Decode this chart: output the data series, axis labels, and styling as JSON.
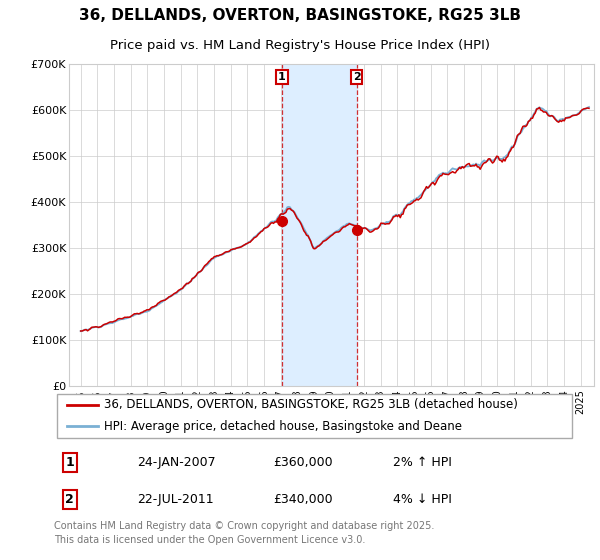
{
  "title": "36, DELLANDS, OVERTON, BASINGSTOKE, RG25 3LB",
  "subtitle": "Price paid vs. HM Land Registry's House Price Index (HPI)",
  "ylim": [
    0,
    700000
  ],
  "yticks": [
    0,
    100000,
    200000,
    300000,
    400000,
    500000,
    600000,
    700000
  ],
  "ytick_labels": [
    "£0",
    "£100K",
    "£200K",
    "£300K",
    "£400K",
    "£500K",
    "£600K",
    "£700K"
  ],
  "sale1_year": 2007.07,
  "sale1_price": 360000,
  "sale1_date": "24-JAN-2007",
  "sale1_pct": "2%",
  "sale1_direction": "↑",
  "sale2_year": 2011.55,
  "sale2_price": 340000,
  "sale2_date": "22-JUL-2011",
  "sale2_pct": "4%",
  "sale2_direction": "↓",
  "legend_line1": "36, DELLANDS, OVERTON, BASINGSTOKE, RG25 3LB (detached house)",
  "legend_line2": "HPI: Average price, detached house, Basingstoke and Deane",
  "footer": "Contains HM Land Registry data © Crown copyright and database right 2025.\nThis data is licensed under the Open Government Licence v3.0.",
  "line_color_red": "#cc0000",
  "line_color_blue": "#7ab0d4",
  "shade_color": "#ddeeff",
  "grid_color": "#cccccc",
  "title_fontsize": 11,
  "subtitle_fontsize": 9.5,
  "tick_fontsize": 8,
  "legend_fontsize": 8.5,
  "footer_fontsize": 7
}
